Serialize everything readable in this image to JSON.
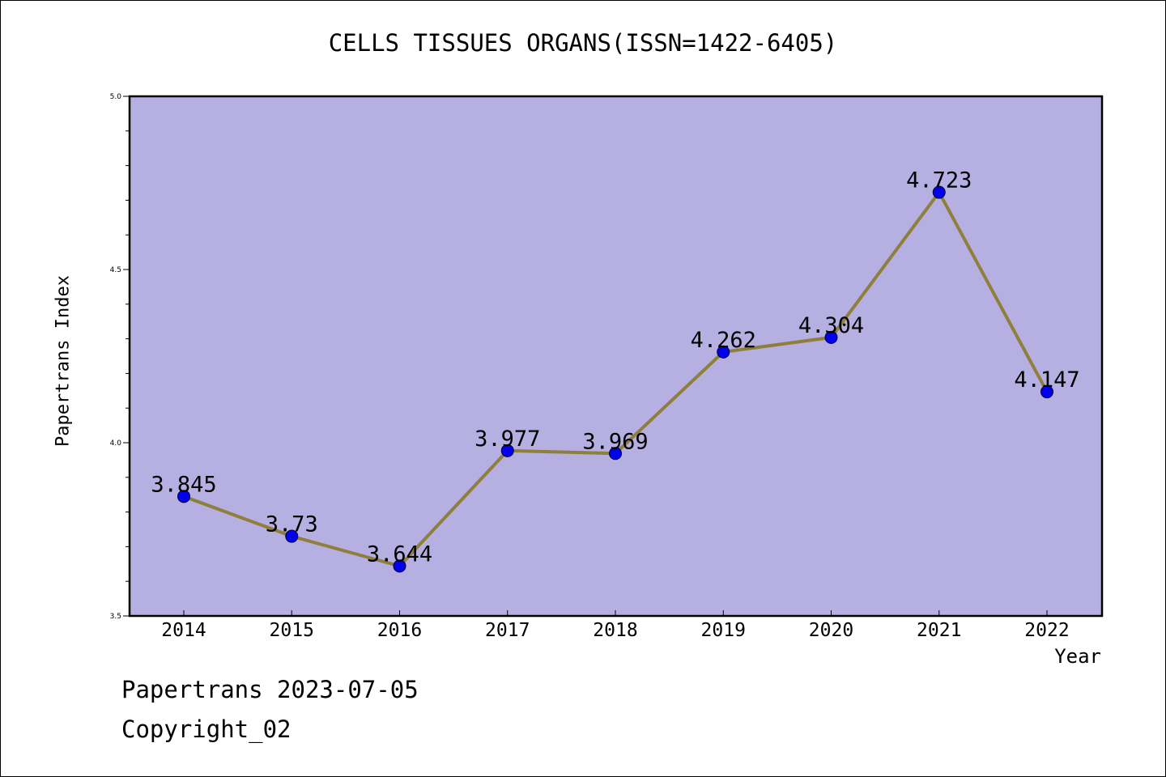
{
  "chart_data": {
    "type": "line",
    "title": "CELLS TISSUES ORGANS(ISSN=1422-6405)",
    "xlabel": "Year",
    "ylabel": "Papertrans Index",
    "categories": [
      "2014",
      "2015",
      "2016",
      "2017",
      "2018",
      "2019",
      "2020",
      "2021",
      "2022"
    ],
    "series": [
      {
        "values": [
          3.845,
          3.73,
          3.644,
          3.977,
          3.969,
          4.262,
          4.304,
          4.723,
          4.147
        ],
        "data_labels": [
          "3.845",
          "3.73",
          "3.644",
          "3.977",
          "3.969",
          "4.262",
          "4.304",
          "4.723",
          "4.147"
        ]
      }
    ],
    "ylim": [
      3.5,
      5.0
    ],
    "yticks": [
      "3.5",
      "4.0",
      "4.5",
      "5.0"
    ],
    "grid": false,
    "colors": {
      "plot_background": "#b5afe2",
      "line": "#8f7f3c",
      "marker": "#0000ee",
      "frame": "#000000"
    }
  },
  "footer": {
    "line1": "Papertrans 2023-07-05",
    "line2": "Copyright_02"
  }
}
